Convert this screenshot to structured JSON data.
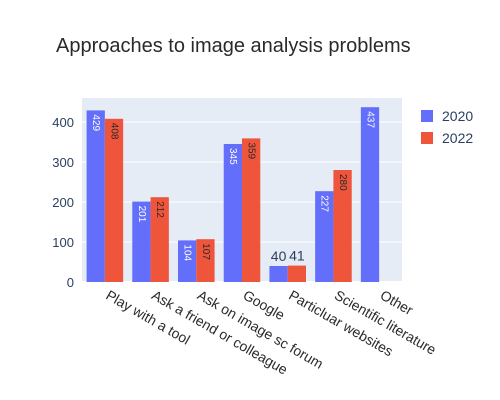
{
  "chart_data": {
    "type": "bar",
    "title": "Approaches to image analysis problems",
    "categories": [
      "Play with a tool",
      "Ask a friend or colleague",
      "Ask on image sc forum",
      "Google",
      "Particluar websites",
      "Scientific literature",
      "Other"
    ],
    "series": [
      {
        "name": "2020",
        "color": "#636efa",
        "values": [
          429,
          201,
          104,
          345,
          40,
          227,
          437
        ]
      },
      {
        "name": "2022",
        "color": "#ef553b",
        "values": [
          408,
          212,
          107,
          359,
          41,
          280,
          null
        ]
      }
    ],
    "ylim": [
      0,
      460
    ],
    "yticks": [
      0,
      100,
      200,
      300,
      400
    ],
    "grid": true,
    "legend_position": "top-right",
    "plot_background": "#e5ecf6"
  }
}
